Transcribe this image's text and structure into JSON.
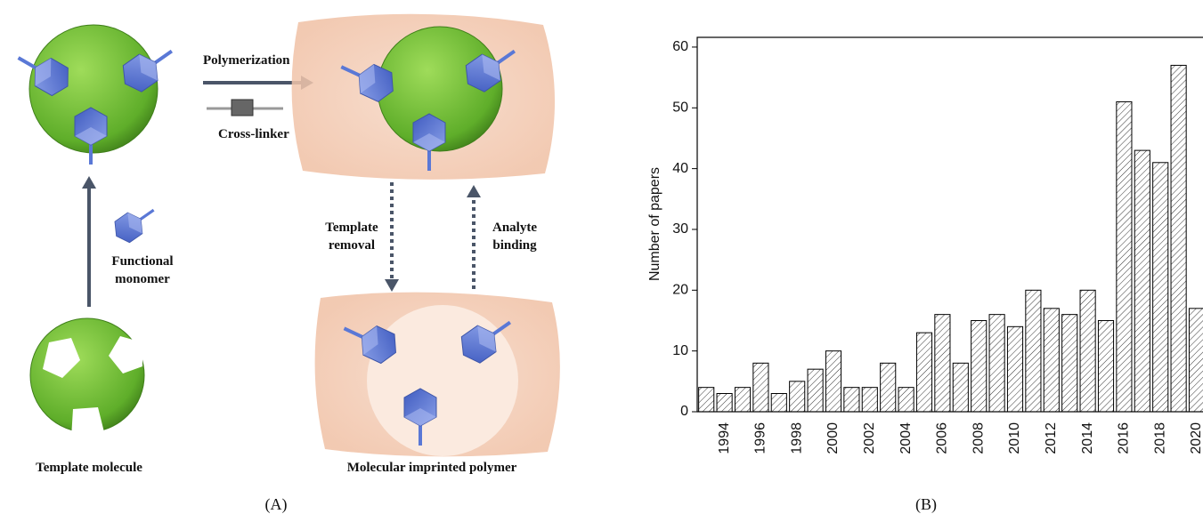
{
  "figure_labels": {
    "a": "(A)",
    "b": "(B)"
  },
  "diagram": {
    "polymerization": "Polymerization",
    "cross_linker": "Cross-linker",
    "template_removal": [
      "Template",
      "removal"
    ],
    "analyte_binding": [
      "Analyte",
      "binding"
    ],
    "functional_monomer": [
      "Functional",
      "monomer"
    ],
    "template_molecule": "Template molecule",
    "mip": "Molecular imprinted polymer"
  },
  "chart_data": {
    "type": "bar",
    "y_label": "Number of papers",
    "categories": [
      null,
      "1994",
      null,
      "1996",
      null,
      "1998",
      null,
      "2000",
      null,
      "2002",
      null,
      "2004",
      null,
      "2006",
      null,
      "2008",
      null,
      "2010",
      null,
      "2012",
      null,
      "2014",
      null,
      "2016",
      null,
      "2018",
      null,
      "2020"
    ],
    "values": [
      4,
      3,
      4,
      8,
      3,
      5,
      7,
      10,
      4,
      4,
      8,
      4,
      13,
      16,
      8,
      15,
      16,
      14,
      20,
      17,
      16,
      20,
      15,
      51,
      43,
      41,
      57,
      17
    ],
    "color": "#000000",
    "fill_pattern": "hatch",
    "ylim": [
      0,
      61.6
    ],
    "yticks": [
      0,
      10,
      20,
      30,
      40,
      50,
      60
    ]
  }
}
